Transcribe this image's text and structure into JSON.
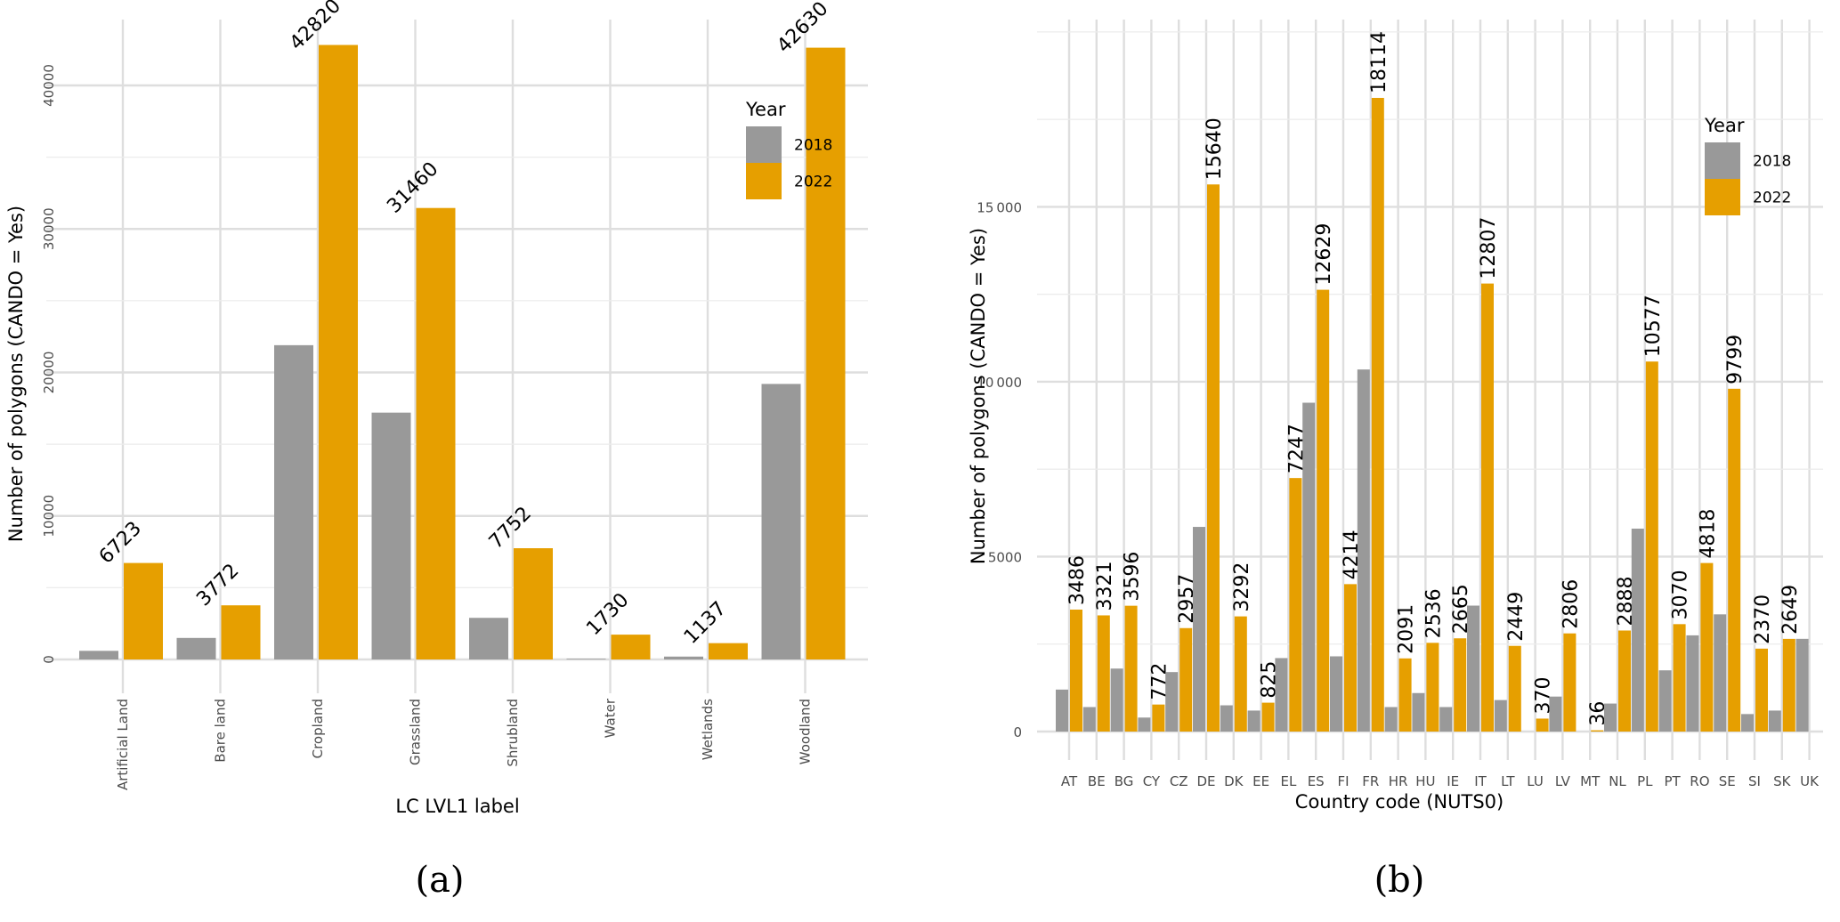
{
  "colors": {
    "y2018": "#999999",
    "y2022": "#E69F00"
  },
  "chart_data": [
    {
      "type": "bar",
      "caption": "(a)",
      "xlabel": "LC LVL1 label",
      "ylabel": "Number of polygons (CANDO = Yes)",
      "ylim": [
        0,
        45000
      ],
      "yticks": [
        0,
        10000,
        20000,
        30000,
        40000
      ],
      "ytick_labels": [
        "0",
        "10000",
        "20000",
        "30000",
        "40000"
      ],
      "legend": {
        "title": "Year",
        "position": "top-right",
        "entries": [
          "2018",
          "2022"
        ]
      },
      "categories": [
        "Artificial Land",
        "Bare land",
        "Cropland",
        "Grassland",
        "Shrubland",
        "Water",
        "Wetlands",
        "Woodland"
      ],
      "series": [
        {
          "name": "2018",
          "values": [
            600,
            1500,
            21900,
            17200,
            2900,
            50,
            200,
            19200
          ]
        },
        {
          "name": "2022",
          "values": [
            6723,
            3772,
            42820,
            31460,
            7752,
            1730,
            1137,
            42630
          ]
        }
      ],
      "data_labels": [
        "6723",
        "3772",
        "42820",
        "31460",
        "7752",
        "1730",
        "1137",
        "42630"
      ]
    },
    {
      "type": "bar",
      "caption": "(b)",
      "xlabel": "Country code (NUTS0)",
      "ylabel": "Number of polygons (CANDO = Yes)",
      "ylim": [
        0,
        18800
      ],
      "yticks": [
        0,
        5000,
        10000,
        15000
      ],
      "ytick_labels": [
        "0",
        "5000",
        "10000",
        "15000"
      ],
      "legend": {
        "title": "Year",
        "position": "top-right",
        "entries": [
          "2018",
          "2022"
        ]
      },
      "categories": [
        "AT",
        "BE",
        "BG",
        "CY",
        "CZ",
        "DE",
        "DK",
        "EE",
        "EL",
        "ES",
        "FI",
        "FR",
        "HR",
        "HU",
        "IE",
        "IT",
        "LT",
        "LU",
        "LV",
        "MT",
        "NL",
        "PL",
        "PT",
        "RO",
        "SE",
        "SI",
        "SK",
        "UK"
      ],
      "series": [
        {
          "name": "2018",
          "values": [
            1200,
            700,
            1800,
            400,
            1700,
            5850,
            750,
            600,
            2100,
            9400,
            2150,
            10350,
            700,
            1100,
            700,
            3600,
            900,
            0,
            1000,
            0,
            800,
            5800,
            1750,
            2750,
            3350,
            500,
            600,
            2650
          ]
        },
        {
          "name": "2022",
          "values": [
            3486,
            3321,
            3596,
            772,
            2957,
            15640,
            3292,
            825,
            7247,
            12629,
            4214,
            18114,
            2091,
            2536,
            2665,
            12807,
            2449,
            370,
            2806,
            36,
            2888,
            10577,
            3070,
            4818,
            9799,
            2370,
            2649,
            null
          ]
        }
      ],
      "data_labels": [
        "3486",
        "3321",
        "3596",
        "772",
        "2957",
        "15640",
        "3292",
        "825",
        "7247",
        "12629",
        "4214",
        "18114",
        "2091",
        "2536",
        "2665",
        "12807",
        "2449",
        "370",
        "2806",
        "36",
        "2888",
        "10577",
        "3070",
        "4818",
        "9799",
        "2370",
        "2649",
        ""
      ]
    }
  ]
}
